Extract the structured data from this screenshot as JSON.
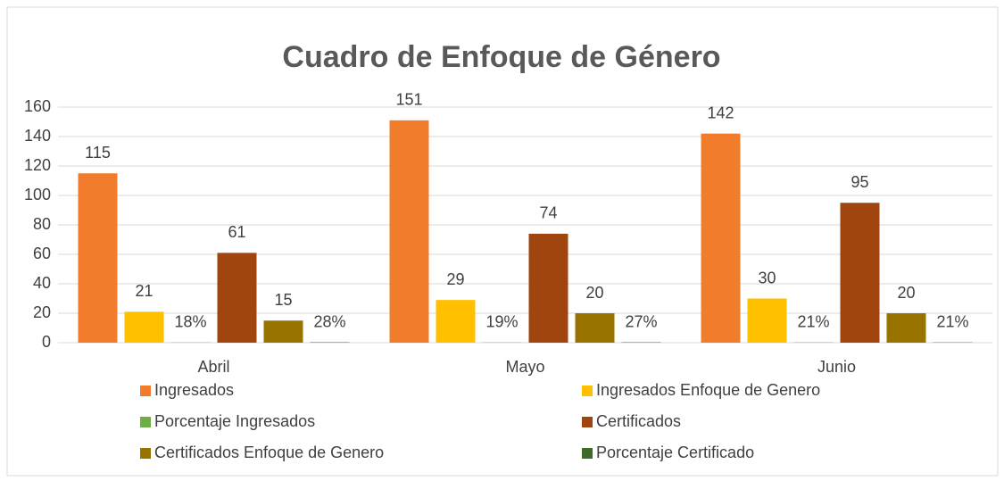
{
  "chart_data": {
    "type": "bar",
    "title": "Cuadro de Enfoque de Género",
    "categories": [
      "Abril",
      "Mayo",
      "Junio"
    ],
    "series": [
      {
        "name": "Ingresados",
        "color": "#F07C2C",
        "values": [
          115,
          151,
          142
        ]
      },
      {
        "name": "Ingresados Enfoque de Genero",
        "color": "#FFC000",
        "values": [
          21,
          29,
          30
        ]
      },
      {
        "name": "Porcentaje Ingresados",
        "color": "#70AD47",
        "values": [
          0.18,
          0.19,
          0.21
        ],
        "value_labels": [
          "18%",
          "19%",
          "21%"
        ]
      },
      {
        "name": "Certificados",
        "color": "#A0450F",
        "values": [
          61,
          74,
          95
        ]
      },
      {
        "name": "Certificados Enfoque de Genero",
        "color": "#997300",
        "values": [
          15,
          20,
          20
        ]
      },
      {
        "name": "Porcentaje Certificado",
        "color": "#3E6B2A",
        "values": [
          0.28,
          0.27,
          0.21
        ],
        "value_labels": [
          "28%",
          "27%",
          "21%"
        ]
      }
    ],
    "ylim": [
      0,
      160
    ],
    "yticks": [
      0,
      20,
      40,
      60,
      80,
      100,
      120,
      140,
      160
    ],
    "grid": true
  }
}
